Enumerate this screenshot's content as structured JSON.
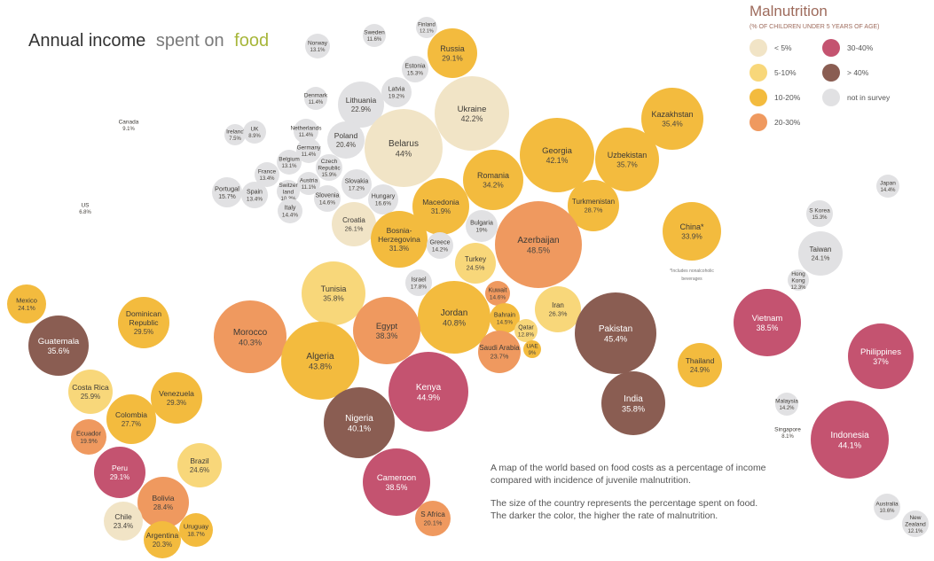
{
  "title": {
    "part1": "Annual income",
    "part2": "spent on",
    "part3": "food"
  },
  "legend": {
    "title": "Malnutrition",
    "subtitle": "(% OF CHILDREN UNDER 5 YEARS OF AGE)",
    "items": [
      {
        "label": "< 5%",
        "color": "#f1e4c6"
      },
      {
        "label": "5-10%",
        "color": "#f8d77a"
      },
      {
        "label": "10-20%",
        "color": "#f3bb3e"
      },
      {
        "label": "20-30%",
        "color": "#ef995f"
      },
      {
        "label": "30-40%",
        "color": "#c45370"
      },
      {
        "label": "> 40%",
        "color": "#8a5d52"
      },
      {
        "label": "not in survey",
        "color": "#e1e1e3"
      }
    ]
  },
  "note": {
    "line1": "A map of the world based on food costs as a percentage of income",
    "line2": "compared with incidence of juvenile malnutrition.",
    "line3": "The size of the country represents the percentage spent on food.",
    "line4": "The darker the color, the higher the rate of malnutrition."
  },
  "china_note": {
    "line1": "*Includes nonalcoholic",
    "line2": "beverages"
  },
  "countries": [
    {
      "name": "Canada",
      "value": "9.1%",
      "cls": "ns"
    },
    {
      "name": "US",
      "value": "6.8%",
      "cls": "ns"
    },
    {
      "name": "Mexico",
      "value": "24.1%",
      "cls": "c10"
    },
    {
      "name": "Guatemala",
      "value": "35.6%",
      "cls": "c40"
    },
    {
      "name": "Dominican Republic",
      "value": "29.5%",
      "cls": "c10"
    },
    {
      "name": "Costa Rica",
      "value": "25.9%",
      "cls": "c5"
    },
    {
      "name": "Venezuela",
      "value": "29.3%",
      "cls": "c10"
    },
    {
      "name": "Colombia",
      "value": "27.7%",
      "cls": "c10"
    },
    {
      "name": "Ecuador",
      "value": "19.9%",
      "cls": "c20"
    },
    {
      "name": "Peru",
      "value": "29.1%",
      "cls": "c30"
    },
    {
      "name": "Brazil",
      "value": "24.6%",
      "cls": "c5"
    },
    {
      "name": "Bolivia",
      "value": "28.4%",
      "cls": "c20"
    },
    {
      "name": "Chile",
      "value": "23.4%",
      "cls": "c0"
    },
    {
      "name": "Argentina",
      "value": "20.3%",
      "cls": "c10"
    },
    {
      "name": "Uruguay",
      "value": "18.7%",
      "cls": "c10"
    },
    {
      "name": "Norway",
      "value": "13.1%",
      "cls": "ns"
    },
    {
      "name": "Sweden",
      "value": "11.6%",
      "cls": "ns"
    },
    {
      "name": "Finland",
      "value": "12.1%",
      "cls": "ns"
    },
    {
      "name": "Russia",
      "value": "29.1%",
      "cls": "c10"
    },
    {
      "name": "Estonia",
      "value": "15.3%",
      "cls": "ns"
    },
    {
      "name": "Latvia",
      "value": "19.2%",
      "cls": "ns"
    },
    {
      "name": "Lithuania",
      "value": "22.9%",
      "cls": "ns"
    },
    {
      "name": "Denmark",
      "value": "11.4%",
      "cls": "ns"
    },
    {
      "name": "Ukraine",
      "value": "42.2%",
      "cls": "c0"
    },
    {
      "name": "Belarus",
      "value": "44%",
      "cls": "c0"
    },
    {
      "name": "Netherlands",
      "value": "11.4%",
      "cls": "ns"
    },
    {
      "name": "Poland",
      "value": "20.4%",
      "cls": "ns"
    },
    {
      "name": "Ireland",
      "value": "7.5%",
      "cls": "ns"
    },
    {
      "name": "UK",
      "value": "8.9%",
      "cls": "ns"
    },
    {
      "name": "Germany",
      "value": "11.4%",
      "cls": "ns"
    },
    {
      "name": "Belgium",
      "value": "13.1%",
      "cls": "ns"
    },
    {
      "name": "Czech Republic",
      "value": "15.9%",
      "cls": "ns"
    },
    {
      "name": "France",
      "value": "13.4%",
      "cls": "ns"
    },
    {
      "name": "Austria",
      "value": "11.1%",
      "cls": "ns"
    },
    {
      "name": "Slovakia",
      "value": "17.2%",
      "cls": "ns"
    },
    {
      "name": "Switzerland",
      "value": "10.3%",
      "cls": "ns"
    },
    {
      "name": "Portugal",
      "value": "15.7%",
      "cls": "ns"
    },
    {
      "name": "Spain",
      "value": "13.4%",
      "cls": "ns"
    },
    {
      "name": "Slovenia",
      "value": "14.6%",
      "cls": "ns"
    },
    {
      "name": "Hungary",
      "value": "16.6%",
      "cls": "ns"
    },
    {
      "name": "Italy",
      "value": "14.4%",
      "cls": "ns"
    },
    {
      "name": "Croatia",
      "value": "26.1%",
      "cls": "c0"
    },
    {
      "name": "Macedonia",
      "value": "31.9%",
      "cls": "c10"
    },
    {
      "name": "Romania",
      "value": "34.2%",
      "cls": "c10"
    },
    {
      "name": "Georgia",
      "value": "42.1%",
      "cls": "c10"
    },
    {
      "name": "Kazakhstan",
      "value": "35.4%",
      "cls": "c10"
    },
    {
      "name": "Uzbekistan",
      "value": "35.7%",
      "cls": "c10"
    },
    {
      "name": "Turkmenistan",
      "value": "28.7%",
      "cls": "c10"
    },
    {
      "name": "Bulgaria",
      "value": "19%",
      "cls": "ns"
    },
    {
      "name": "Azerbaijan",
      "value": "48.5%",
      "cls": "c20"
    },
    {
      "name": "Bosnia-Herzegovina",
      "value": "31.3%",
      "cls": "c10"
    },
    {
      "name": "Greece",
      "value": "14.2%",
      "cls": "ns"
    },
    {
      "name": "Turkey",
      "value": "24.5%",
      "cls": "c5"
    },
    {
      "name": "China*",
      "value": "33.9%",
      "cls": "c10"
    },
    {
      "name": "Japan",
      "value": "14.4%",
      "cls": "ns"
    },
    {
      "name": "S Korea",
      "value": "15.3%",
      "cls": "ns"
    },
    {
      "name": "Taiwan",
      "value": "24.1%",
      "cls": "ns"
    },
    {
      "name": "Hong Kong",
      "value": "12.3%",
      "cls": "ns"
    },
    {
      "name": "Tunisia",
      "value": "35.8%",
      "cls": "c5"
    },
    {
      "name": "Israel",
      "value": "17.8%",
      "cls": "ns"
    },
    {
      "name": "Kuwait",
      "value": "14.6%",
      "cls": "c20"
    },
    {
      "name": "Jordan",
      "value": "40.8%",
      "cls": "c10"
    },
    {
      "name": "Bahrain",
      "value": "14.5%",
      "cls": "c10"
    },
    {
      "name": "Qatar",
      "value": "12.8%",
      "cls": "c5"
    },
    {
      "name": "UAE",
      "value": "9%",
      "cls": "c10"
    },
    {
      "name": "Saudi Arabia",
      "value": "23.7%",
      "cls": "c20"
    },
    {
      "name": "Iran",
      "value": "26.3%",
      "cls": "c5"
    },
    {
      "name": "Morocco",
      "value": "40.3%",
      "cls": "c20"
    },
    {
      "name": "Algeria",
      "value": "43.8%",
      "cls": "c10"
    },
    {
      "name": "Egypt",
      "value": "38.3%",
      "cls": "c20"
    },
    {
      "name": "Kenya",
      "value": "44.9%",
      "cls": "c30"
    },
    {
      "name": "Nigeria",
      "value": "40.1%",
      "cls": "c40"
    },
    {
      "name": "Cameroon",
      "value": "38.5%",
      "cls": "c30"
    },
    {
      "name": "S Africa",
      "value": "20.1%",
      "cls": "c20"
    },
    {
      "name": "Pakistan",
      "value": "45.4%",
      "cls": "c40"
    },
    {
      "name": "India",
      "value": "35.8%",
      "cls": "c40"
    },
    {
      "name": "Thailand",
      "value": "24.9%",
      "cls": "c10"
    },
    {
      "name": "Vietnam",
      "value": "38.5%",
      "cls": "c30"
    },
    {
      "name": "Philippines",
      "value": "37%",
      "cls": "c30"
    },
    {
      "name": "Malaysia",
      "value": "14.2%",
      "cls": "ns"
    },
    {
      "name": "Singapore",
      "value": "8.1%",
      "cls": "ns"
    },
    {
      "name": "Indonesia",
      "value": "44.1%",
      "cls": "c30"
    },
    {
      "name": "Australia",
      "value": "10.6%",
      "cls": "ns"
    },
    {
      "name": "New Zealand",
      "value": "12.1%",
      "cls": "ns"
    }
  ]
}
